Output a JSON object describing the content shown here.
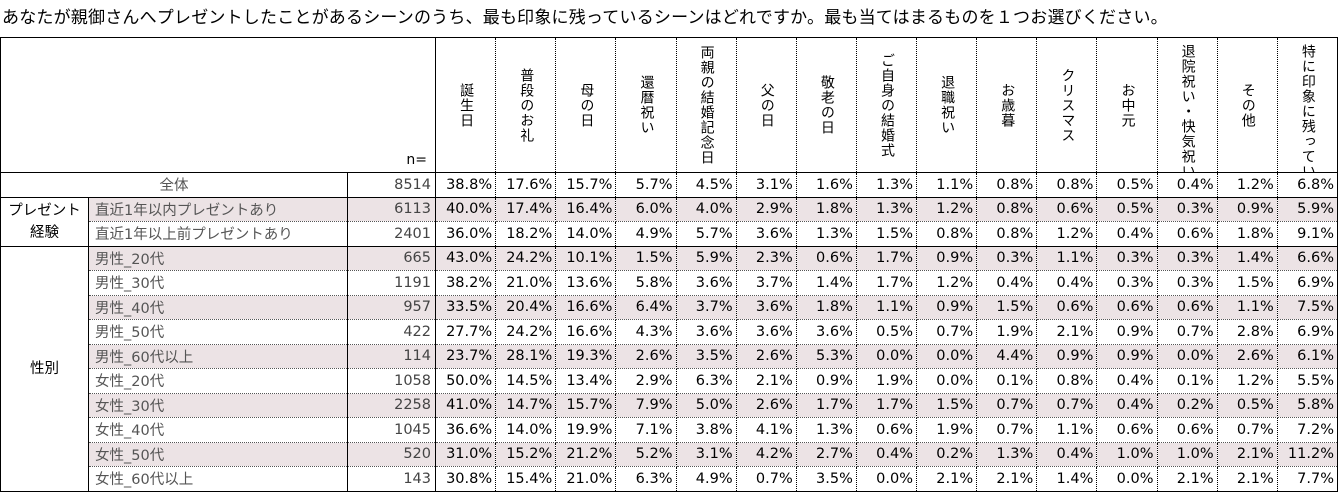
{
  "title": "あなたが親御さんへプレゼントしたことがあるシーンのうち、最も印象に残っているシーンはどれですか。最も当てはまるものを１つお選びください。",
  "n_label": "n=",
  "chart_data": {
    "type": "table",
    "columns": [
      "誕生日",
      "普段のお礼",
      "母の日",
      "還暦祝い",
      "両親の結婚記念日",
      "父の日",
      "敬老の日",
      "ご自身の結婚式",
      "退職祝い",
      "お歳暮",
      "クリスマス",
      "お中元",
      "退院祝い・快気祝い",
      "その他",
      "特に印象に残っているシーンはない"
    ],
    "rows": [
      {
        "group": "",
        "label": "全体",
        "n": "8514",
        "shade": false,
        "values": [
          "38.8%",
          "17.6%",
          "15.7%",
          "5.7%",
          "4.5%",
          "3.1%",
          "1.6%",
          "1.3%",
          "1.1%",
          "0.8%",
          "0.8%",
          "0.5%",
          "0.4%",
          "1.2%",
          "6.8%"
        ]
      },
      {
        "group": "プレゼント経験",
        "label": "直近1年以内プレゼントあり",
        "n": "6113",
        "shade": true,
        "values": [
          "40.0%",
          "17.4%",
          "16.4%",
          "6.0%",
          "4.0%",
          "2.9%",
          "1.8%",
          "1.3%",
          "1.2%",
          "0.8%",
          "0.6%",
          "0.5%",
          "0.3%",
          "0.9%",
          "5.9%"
        ]
      },
      {
        "group": "プレゼント経験",
        "label": "直近1年以上前プレゼントあり",
        "n": "2401",
        "shade": false,
        "values": [
          "36.0%",
          "18.2%",
          "14.0%",
          "4.9%",
          "5.7%",
          "3.6%",
          "1.3%",
          "1.5%",
          "0.8%",
          "0.8%",
          "1.2%",
          "0.4%",
          "0.6%",
          "1.8%",
          "9.1%"
        ]
      },
      {
        "group": "性別",
        "label": "男性_20代",
        "n": "665",
        "shade": true,
        "values": [
          "43.0%",
          "24.2%",
          "10.1%",
          "1.5%",
          "5.9%",
          "2.3%",
          "0.6%",
          "1.7%",
          "0.9%",
          "0.3%",
          "1.1%",
          "0.3%",
          "0.3%",
          "1.4%",
          "6.6%"
        ]
      },
      {
        "group": "性別",
        "label": "男性_30代",
        "n": "1191",
        "shade": false,
        "values": [
          "38.2%",
          "21.0%",
          "13.6%",
          "5.8%",
          "3.6%",
          "3.7%",
          "1.4%",
          "1.7%",
          "1.2%",
          "0.4%",
          "0.4%",
          "0.3%",
          "0.3%",
          "1.5%",
          "6.9%"
        ]
      },
      {
        "group": "性別",
        "label": "男性_40代",
        "n": "957",
        "shade": true,
        "values": [
          "33.5%",
          "20.4%",
          "16.6%",
          "6.4%",
          "3.7%",
          "3.6%",
          "1.8%",
          "1.1%",
          "0.9%",
          "1.5%",
          "0.6%",
          "0.6%",
          "0.6%",
          "1.1%",
          "7.5%"
        ]
      },
      {
        "group": "性別",
        "label": "男性_50代",
        "n": "422",
        "shade": false,
        "values": [
          "27.7%",
          "24.2%",
          "16.6%",
          "4.3%",
          "3.6%",
          "3.6%",
          "3.6%",
          "0.5%",
          "0.7%",
          "1.9%",
          "2.1%",
          "0.9%",
          "0.7%",
          "2.8%",
          "6.9%"
        ]
      },
      {
        "group": "性別",
        "label": "男性_60代以上",
        "n": "114",
        "shade": true,
        "values": [
          "23.7%",
          "28.1%",
          "19.3%",
          "2.6%",
          "3.5%",
          "2.6%",
          "5.3%",
          "0.0%",
          "0.0%",
          "4.4%",
          "0.9%",
          "0.9%",
          "0.0%",
          "2.6%",
          "6.1%"
        ]
      },
      {
        "group": "性別",
        "label": "女性_20代",
        "n": "1058",
        "shade": false,
        "values": [
          "50.0%",
          "14.5%",
          "13.4%",
          "2.9%",
          "6.3%",
          "2.1%",
          "0.9%",
          "1.9%",
          "0.0%",
          "0.1%",
          "0.8%",
          "0.4%",
          "0.1%",
          "1.2%",
          "5.5%"
        ]
      },
      {
        "group": "性別",
        "label": "女性_30代",
        "n": "2258",
        "shade": true,
        "values": [
          "41.0%",
          "14.7%",
          "15.7%",
          "7.9%",
          "5.0%",
          "2.6%",
          "1.7%",
          "1.7%",
          "1.5%",
          "0.7%",
          "0.7%",
          "0.4%",
          "0.2%",
          "0.5%",
          "5.8%"
        ]
      },
      {
        "group": "性別",
        "label": "女性_40代",
        "n": "1045",
        "shade": false,
        "values": [
          "36.6%",
          "14.0%",
          "19.9%",
          "7.1%",
          "3.8%",
          "4.1%",
          "1.3%",
          "0.6%",
          "1.9%",
          "0.7%",
          "1.1%",
          "0.6%",
          "0.6%",
          "0.7%",
          "7.2%"
        ]
      },
      {
        "group": "性別",
        "label": "女性_50代",
        "n": "520",
        "shade": true,
        "values": [
          "31.0%",
          "15.2%",
          "21.2%",
          "5.2%",
          "3.1%",
          "4.2%",
          "2.7%",
          "0.4%",
          "0.2%",
          "1.3%",
          "0.4%",
          "1.0%",
          "1.0%",
          "2.1%",
          "11.2%"
        ]
      },
      {
        "group": "性別",
        "label": "女性_60代以上",
        "n": "143",
        "shade": false,
        "values": [
          "30.8%",
          "15.4%",
          "21.0%",
          "6.3%",
          "4.9%",
          "0.7%",
          "3.5%",
          "0.0%",
          "2.1%",
          "2.1%",
          "1.4%",
          "0.0%",
          "2.1%",
          "2.1%",
          "7.7%"
        ]
      }
    ],
    "shade_color": "#ece3e5"
  }
}
